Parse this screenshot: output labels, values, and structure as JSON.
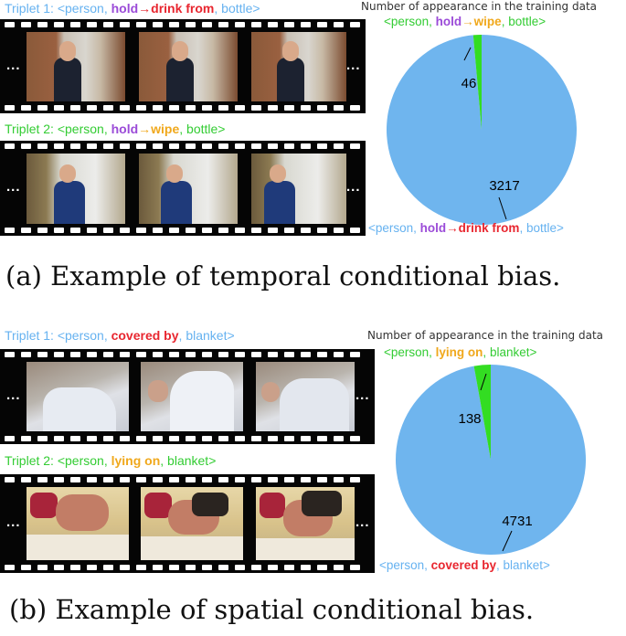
{
  "colors": {
    "light_blue": "#66b2f0",
    "green": "#33cc33",
    "purple": "#9b4bd8",
    "red": "#e8262f",
    "orange": "#f0a81c",
    "pie_major": "#6fb5ee",
    "pie_minor": "#33dd22"
  },
  "panel_a": {
    "triplet1": {
      "prefix": "Triplet 1: <person, ",
      "verb1": "hold",
      "arrow": "→",
      "verb2": "drink from",
      "sep": ", ",
      "obj": "bottle>"
    },
    "triplet2": {
      "prefix": "Triplet 2: <person, ",
      "verb1": "hold",
      "arrow": "→",
      "verb2": "wipe",
      "sep": ", ",
      "obj": "bottle>"
    },
    "dots": "...",
    "chart_title": "Number of appearance in the training data",
    "caption": "(a) Example of temporal conditional bias."
  },
  "panel_b": {
    "triplet1": {
      "prefix": "Triplet 1: <person, ",
      "rel": "covered by",
      "sep": ", ",
      "obj": "blanket>"
    },
    "triplet2": {
      "prefix": "Triplet 2: <person, ",
      "rel": "lying on",
      "sep": ", ",
      "obj": "blanket>"
    },
    "dots": "...",
    "chart_title": "Number of appearance in the training data",
    "caption": "(b) Example of spatial conditional bias."
  },
  "chart_data": [
    {
      "type": "pie",
      "title": "Number of appearance in the training data",
      "slices": [
        {
          "label": "<person, hold→wipe, bottle>",
          "value": 46
        },
        {
          "label": "<person, hold→drink from, bottle>",
          "value": 3217
        }
      ]
    },
    {
      "type": "pie",
      "title": "Number of appearance in the training data",
      "slices": [
        {
          "label": "<person, lying on, blanket>",
          "value": 138
        },
        {
          "label": "<person, covered by, blanket>",
          "value": 4731
        }
      ]
    }
  ],
  "pie_labels": {
    "a_minor": {
      "p1": "<person, ",
      "verb1": "hold",
      "arrow": "→",
      "verb2": "wipe",
      "sep": ", ",
      "obj": "bottle>"
    },
    "a_major": {
      "p1": "<person, ",
      "verb1": "hold",
      "arrow": "→",
      "verb2": "drink from",
      "sep": ", ",
      "obj": "bottle>"
    },
    "b_minor": {
      "p1": "<person, ",
      "rel": "lying on",
      "sep": ", ",
      "obj": "blanket>"
    },
    "b_major": {
      "p1": "<person, ",
      "rel": "covered by",
      "sep": ", ",
      "obj": "blanket>"
    }
  },
  "pie_values": {
    "a_minor": "46",
    "a_major": "3217",
    "b_minor": "138",
    "b_major": "4731"
  }
}
